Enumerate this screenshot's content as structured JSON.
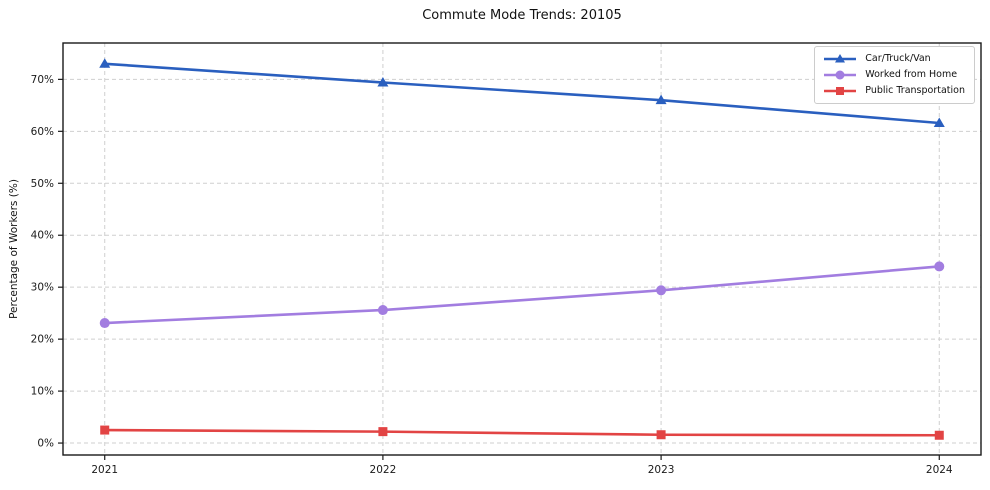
{
  "chart_data": {
    "type": "line",
    "title": "Commute Mode Trends: 20105",
    "xlabel": "",
    "ylabel": "Percentage of Workers (%)",
    "x": [
      2021,
      2022,
      2023,
      2024
    ],
    "xtick_labels": [
      "2021",
      "2022",
      "2023",
      "2024"
    ],
    "yticks": [
      0,
      10,
      20,
      30,
      40,
      50,
      60,
      70
    ],
    "ytick_labels": [
      "0%",
      "10%",
      "20%",
      "30%",
      "40%",
      "50%",
      "60%",
      "70%"
    ],
    "xlim": [
      2020.85,
      2024.15
    ],
    "ylim": [
      -2.3,
      77
    ],
    "grid": true,
    "grid_style": "dashed",
    "legend_position": "upper right",
    "series": [
      {
        "name": "Car/Truck/Van",
        "marker": "triangle",
        "color": "#2a5fbf",
        "values": [
          73.0,
          69.4,
          66.0,
          61.6
        ]
      },
      {
        "name": "Worked from Home",
        "marker": "circle",
        "color": "#a27de0",
        "values": [
          23.1,
          25.6,
          29.4,
          34.0
        ]
      },
      {
        "name": "Public Transportation",
        "marker": "square",
        "color": "#e24444",
        "values": [
          2.5,
          2.2,
          1.6,
          1.5
        ]
      }
    ]
  },
  "colors": {
    "background": "#ffffff",
    "grid": "#cfcfcf",
    "axis": "#1a1a1a",
    "tick_label": "#1a1a1a",
    "legend_border": "#cccccc"
  }
}
